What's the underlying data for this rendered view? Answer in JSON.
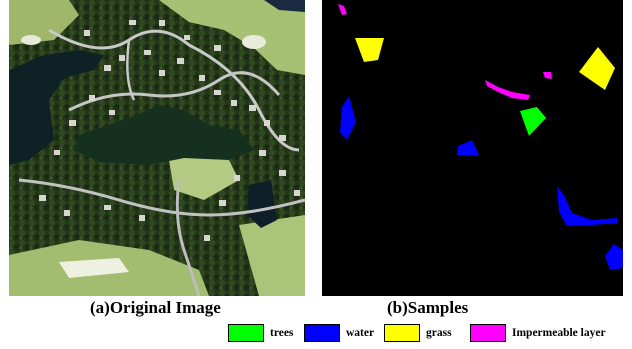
{
  "captions": {
    "original": "(a)Original Image",
    "samples": "(b)Samples"
  },
  "legend": [
    {
      "label": "trees",
      "color": "#00ff00"
    },
    {
      "label": "water",
      "color": "#0000ff"
    },
    {
      "label": "grass",
      "color": "#ffff00"
    },
    {
      "label": "Impermeable layer",
      "color": "#ff00ff"
    }
  ],
  "colors": {
    "trees": "#00ff00",
    "water": "#0000ff",
    "grass": "#ffff00",
    "impermeable": "#ff00ff",
    "background": "#000000"
  }
}
